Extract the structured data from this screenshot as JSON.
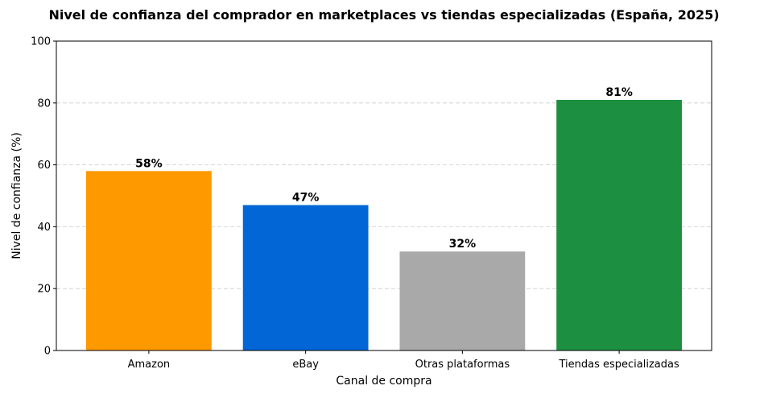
{
  "chart_data": {
    "type": "bar",
    "title": "Nivel de confianza del comprador en marketplaces vs tiendas especializadas (España, 2025)",
    "xlabel": "Canal de compra",
    "ylabel": "Nivel de confianza (%)",
    "categories": [
      "Amazon",
      "eBay",
      "Otras plataformas",
      "Tiendas especializadas"
    ],
    "values": [
      58,
      47,
      32,
      81
    ],
    "data_labels": [
      "58%",
      "47%",
      "32%",
      "81%"
    ],
    "colors": [
      "#FF9900",
      "#0366D6",
      "#A9A9A9",
      "#1C8F40"
    ],
    "ylim": [
      0,
      100
    ],
    "yticks": [
      0,
      20,
      40,
      60,
      80,
      100
    ],
    "ytick_labels": [
      "0",
      "20",
      "40",
      "60",
      "80",
      "100"
    ],
    "grid": "y, dashed",
    "legend": "none"
  }
}
